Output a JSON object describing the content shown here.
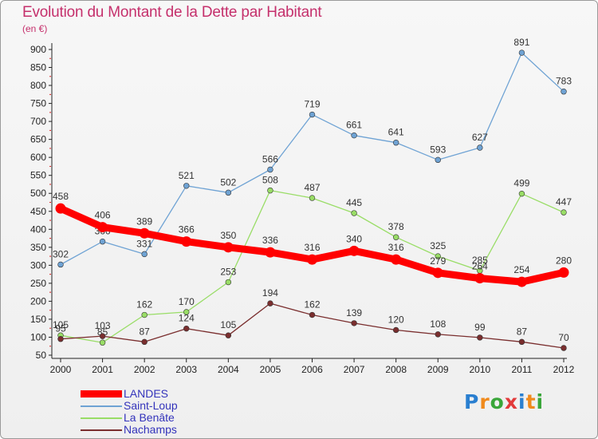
{
  "chart_data": {
    "type": "line",
    "title": "Evolution du Montant de la Dette par Habitant",
    "subtitle": "(en €)",
    "xlabel": "",
    "ylabel": "",
    "x": [
      2000,
      2001,
      2002,
      2003,
      2004,
      2005,
      2006,
      2007,
      2008,
      2009,
      2010,
      2011,
      2012
    ],
    "ylim": [
      50,
      900
    ],
    "yticks": [
      50,
      100,
      150,
      200,
      250,
      300,
      350,
      400,
      450,
      500,
      550,
      600,
      650,
      700,
      750,
      800,
      850,
      900
    ],
    "grid": false,
    "legend_position": "bottom-left",
    "series": [
      {
        "name": "LANDES",
        "color": "#ff0000",
        "emphasis": true,
        "values": [
          458,
          406,
          389,
          366,
          350,
          336,
          316,
          340,
          316,
          279,
          264,
          254,
          280
        ]
      },
      {
        "name": "Saint-Loup",
        "color": "#6fa3d4",
        "values": [
          302,
          366,
          331,
          521,
          502,
          566,
          719,
          661,
          641,
          593,
          627,
          891,
          783
        ]
      },
      {
        "name": "La Benâte",
        "color": "#99dd66",
        "values": [
          105,
          85,
          162,
          170,
          253,
          508,
          487,
          445,
          378,
          325,
          285,
          499,
          447
        ]
      },
      {
        "name": "Nachamps",
        "color": "#7a2e2e",
        "values": [
          95,
          103,
          87,
          124,
          105,
          194,
          162,
          139,
          120,
          108,
          99,
          87,
          70
        ]
      }
    ]
  },
  "logo": {
    "text": "Proxiti"
  }
}
